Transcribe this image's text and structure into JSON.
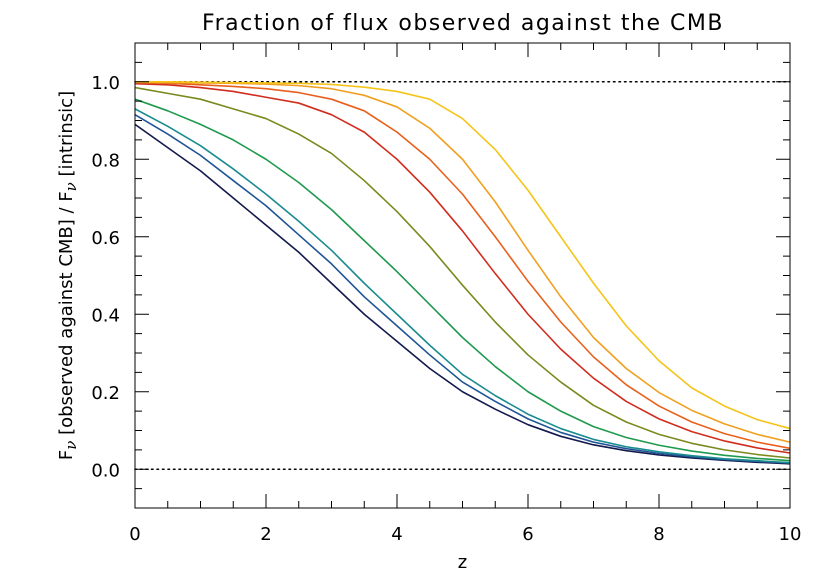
{
  "chart_data": {
    "type": "line",
    "title": "Fraction of flux observed against the CMB",
    "xlabel": "z",
    "ylabel_parts": [
      "F",
      "ν",
      " [observed against CMB] / F",
      "ν",
      " [intrinsic]"
    ],
    "xlim": [
      0,
      10
    ],
    "ylim": [
      -0.1,
      1.1
    ],
    "xticks": [
      0,
      2,
      4,
      6,
      8,
      10
    ],
    "xtick_labels": [
      "0",
      "2",
      "4",
      "6",
      "8",
      "10"
    ],
    "yticks": [
      0.0,
      0.2,
      0.4,
      0.6,
      0.8,
      1.0
    ],
    "ytick_labels": [
      "0.0",
      "0.2",
      "0.4",
      "0.6",
      "0.8",
      "1.0"
    ],
    "x_minor_step": 0.5,
    "y_minor_step": 0.05,
    "grid": false,
    "reference_lines": [
      {
        "y": 1.0,
        "style": "dotted"
      },
      {
        "y": 0.0,
        "style": "dotted"
      }
    ],
    "x": [
      0,
      0.5,
      1,
      1.5,
      2,
      2.5,
      3,
      3.5,
      4,
      4.5,
      5,
      5.5,
      6,
      6.5,
      7,
      7.5,
      8,
      8.5,
      9,
      9.5,
      10
    ],
    "series": [
      {
        "color": "#141a4d",
        "values": [
          0.89,
          0.83,
          0.77,
          0.7,
          0.63,
          0.56,
          0.48,
          0.4,
          0.33,
          0.26,
          0.2,
          0.155,
          0.115,
          0.085,
          0.063,
          0.048,
          0.037,
          0.029,
          0.023,
          0.018,
          0.014
        ]
      },
      {
        "color": "#1f5596",
        "values": [
          0.915,
          0.865,
          0.81,
          0.745,
          0.68,
          0.605,
          0.53,
          0.445,
          0.37,
          0.295,
          0.225,
          0.175,
          0.13,
          0.095,
          0.07,
          0.053,
          0.041,
          0.032,
          0.025,
          0.02,
          0.016
        ]
      },
      {
        "color": "#1a8b90",
        "values": [
          0.93,
          0.885,
          0.835,
          0.775,
          0.71,
          0.64,
          0.565,
          0.48,
          0.4,
          0.32,
          0.245,
          0.19,
          0.142,
          0.105,
          0.077,
          0.058,
          0.045,
          0.035,
          0.027,
          0.022,
          0.017
        ]
      },
      {
        "color": "#1f9a4e",
        "values": [
          0.955,
          0.925,
          0.89,
          0.85,
          0.8,
          0.74,
          0.67,
          0.59,
          0.51,
          0.425,
          0.34,
          0.265,
          0.2,
          0.15,
          0.11,
          0.082,
          0.062,
          0.047,
          0.036,
          0.028,
          0.022
        ]
      },
      {
        "color": "#7a8a1e",
        "values": [
          0.985,
          0.97,
          0.955,
          0.93,
          0.905,
          0.865,
          0.815,
          0.745,
          0.665,
          0.575,
          0.475,
          0.38,
          0.295,
          0.225,
          0.165,
          0.122,
          0.09,
          0.067,
          0.05,
          0.038,
          0.029
        ]
      },
      {
        "color": "#d02d1e",
        "values": [
          0.995,
          0.992,
          0.985,
          0.975,
          0.96,
          0.945,
          0.915,
          0.87,
          0.8,
          0.715,
          0.615,
          0.505,
          0.4,
          0.31,
          0.235,
          0.175,
          0.13,
          0.097,
          0.073,
          0.055,
          0.042
        ]
      },
      {
        "color": "#e8601c",
        "values": [
          0.998,
          0.996,
          0.992,
          0.988,
          0.982,
          0.972,
          0.955,
          0.925,
          0.87,
          0.8,
          0.71,
          0.6,
          0.485,
          0.38,
          0.29,
          0.218,
          0.163,
          0.122,
          0.092,
          0.07,
          0.054
        ]
      },
      {
        "color": "#f0a020",
        "values": [
          0.999,
          0.998,
          0.997,
          0.996,
          0.994,
          0.99,
          0.982,
          0.965,
          0.935,
          0.88,
          0.8,
          0.69,
          0.565,
          0.445,
          0.34,
          0.26,
          0.198,
          0.152,
          0.117,
          0.09,
          0.07
        ]
      },
      {
        "color": "#f5c419",
        "values": [
          1.0,
          1.0,
          0.999,
          0.998,
          0.997,
          0.996,
          0.993,
          0.986,
          0.975,
          0.955,
          0.905,
          0.825,
          0.72,
          0.6,
          0.48,
          0.37,
          0.28,
          0.21,
          0.163,
          0.128,
          0.105
        ]
      }
    ]
  }
}
